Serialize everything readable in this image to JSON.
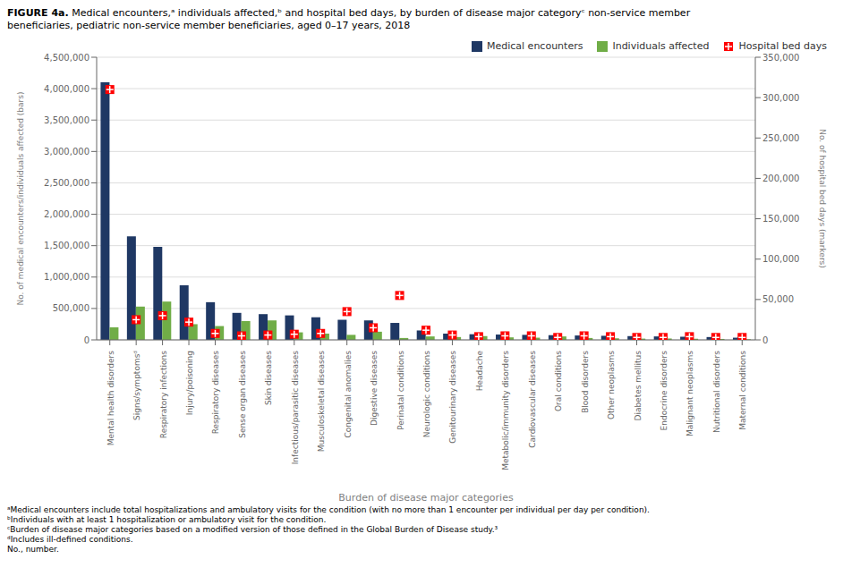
{
  "chart_data": {
    "type": "bar",
    "title": "FIGURE 4a.",
    "subtitle": "Medical encounters,ᵃ individuals affected,ᵇ and hospital bed days, by burden of disease major categoryᶜ non-service member\nbeneficiaries, pediatric non-service member beneficiaries, aged 0–17 years, 2018",
    "xlabel": "Burden of disease major categories",
    "ylabel": "No. of medical encounters/individuals affected (bars)",
    "y2label": "No. of hospital bed days (markers)",
    "categories": [
      "Mental health disorders",
      "Signs/symptomsᵈ",
      "Respiratory infections",
      "Injury/poisoning",
      "Respiratory diseases",
      "Sense organ diseases",
      "Skin diseases",
      "Infectious/parasitic diseases",
      "Musculoskeletal diseases",
      "Congenital anomalies",
      "Digestive diseases",
      "Perinatal conditions",
      "Neurologic conditions",
      "Genitourinary diseases",
      "Headache",
      "Metabolic/immunity disorders",
      "Cardiovascular diseases",
      "Oral conditions",
      "Blood disorders",
      "Other neoplasms",
      "Diabetes mellitus",
      "Endocrine disorders",
      "Malignant neoplasms",
      "Nutritional disorders",
      "Maternal conditions"
    ],
    "series": [
      {
        "name": "Medical encounters",
        "type": "bar",
        "color": "#1F3864",
        "values": [
          4100000,
          1650000,
          1480000,
          870000,
          600000,
          430000,
          410000,
          390000,
          360000,
          320000,
          310000,
          270000,
          150000,
          100000,
          90000,
          85000,
          80000,
          75000,
          70000,
          65000,
          60000,
          55000,
          50000,
          45000,
          35000
        ]
      },
      {
        "name": "Individuals affected",
        "type": "bar",
        "color": "#70AD47",
        "values": [
          200000,
          530000,
          610000,
          250000,
          220000,
          300000,
          310000,
          120000,
          100000,
          80000,
          130000,
          30000,
          55000,
          45000,
          60000,
          40000,
          35000,
          55000,
          30000,
          25000,
          20000,
          22000,
          18000,
          15000,
          10000
        ]
      },
      {
        "name": "Hospital bed days",
        "type": "scatter",
        "color": "#FF0000",
        "marker": "square",
        "axis": "y2",
        "values": [
          310000,
          25000,
          30000,
          22000,
          8000,
          5000,
          6000,
          7000,
          8000,
          35000,
          15000,
          55000,
          12000,
          6000,
          4000,
          5000,
          5000,
          3000,
          5000,
          4000,
          3000,
          3000,
          4000,
          3000,
          3000
        ]
      }
    ],
    "ylim": [
      0,
      4500000
    ],
    "yticks": [
      0,
      {
        "value": 500000,
        "label": "500,000"
      },
      {
        "value": 1000000,
        "label": "1,000,000"
      },
      {
        "value": 1500000,
        "label": "1,500,000"
      },
      {
        "value": 2000000,
        "label": "2,000,000"
      },
      {
        "value": 2500000,
        "label": "2,500,000"
      },
      {
        "value": 3000000,
        "label": "3,000,000"
      },
      {
        "value": 3500000,
        "label": "3,500,000"
      },
      {
        "value": 4000000,
        "label": "4,000,000"
      },
      {
        "value": 4500000,
        "label": "4,500,000"
      }
    ],
    "y2lim": [
      0,
      350000
    ],
    "y2ticks": [
      0,
      {
        "value": 50000,
        "label": "50,000"
      },
      {
        "value": 100000,
        "label": "100,000"
      },
      {
        "value": 150000,
        "label": "150,000"
      },
      {
        "value": 200000,
        "label": "200,000"
      },
      {
        "value": 250000,
        "label": "250,000"
      },
      {
        "value": 300000,
        "label": "300,000"
      },
      {
        "value": 350000,
        "label": "350,000"
      }
    ],
    "grid": true,
    "legend": "upper right",
    "annotations": [
      "ᵃMedical encounters include total hospitalizations and ambulatory visits for the condition (with no more than 1 encounter per individual per day per condition).",
      "ᵇIndividuals with at least 1 hospitalization or ambulatory visit for the condition.",
      "ᶜBurden of disease major categories based on a modified version of those defined in the Global Burden of Disease study.³",
      "ᵈIncludes ill-defined conditions.",
      "No., number."
    ]
  }
}
